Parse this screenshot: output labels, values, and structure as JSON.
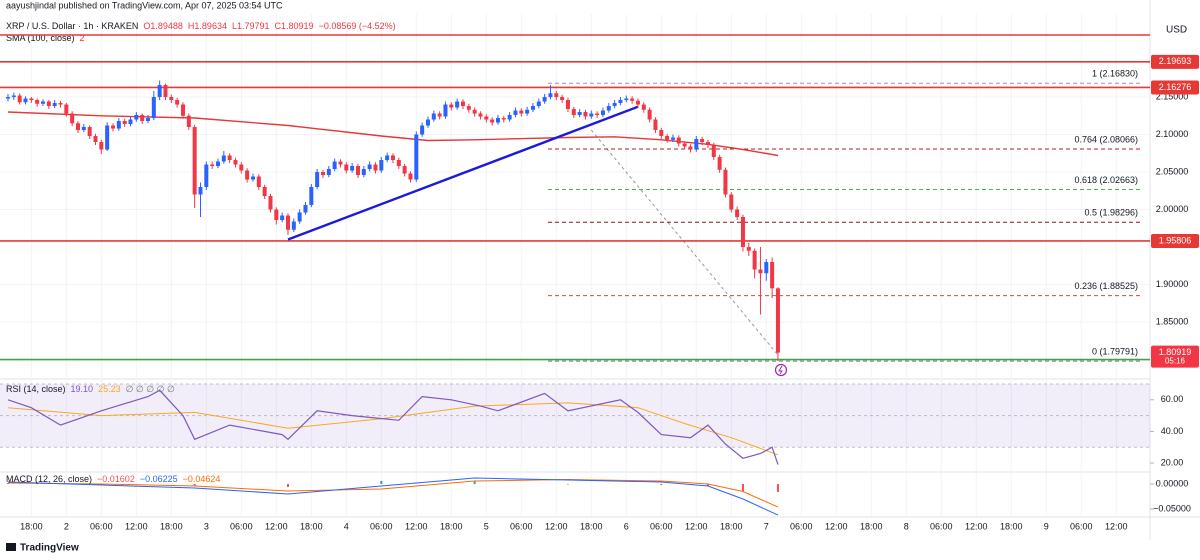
{
  "header": "aayushjindal published on TradingView.com, Apr 07, 2025 03:54 UTC",
  "footer": "TradingView",
  "chart_data": {
    "type": "candlestick",
    "title": "XRP / U.S. Dollar · 1h · KRAKEN",
    "ohlc_text": [
      "O1.89488",
      "H1.89634",
      "L1.79791",
      "C1.80919",
      "−0.08569 (−4.52%)"
    ],
    "currency": "USD",
    "x_labels": [
      "18:00",
      "2",
      "06:00",
      "12:00",
      "18:00",
      "3",
      "06:00",
      "12:00",
      "18:00",
      "4",
      "06:00",
      "12:00",
      "18:00",
      "5",
      "06:00",
      "12:00",
      "18:00",
      "6",
      "06:00",
      "12:00",
      "18:00",
      "7",
      "06:00",
      "12:00",
      "18:00",
      "8",
      "06:00",
      "12:00",
      "18:00",
      "9",
      "06:00",
      "12:00"
    ],
    "up_color": "#2962ff",
    "down_color": "#f23645",
    "ylim": [
      1.776,
      2.2527
    ],
    "yticks": [
      {
        "value": 2.15,
        "label": "2.15000"
      },
      {
        "value": 2.1,
        "label": "2.10000"
      },
      {
        "value": 2.05,
        "label": "2.05000"
      },
      {
        "value": 2.0,
        "label": "2.00000"
      },
      {
        "value": 1.9,
        "label": "1.90000"
      },
      {
        "value": 1.85,
        "label": "1.85000"
      }
    ],
    "ohlc": [
      [
        2.148,
        2.154,
        2.144,
        2.15
      ],
      [
        2.15,
        2.156,
        2.146,
        2.152
      ],
      [
        2.152,
        2.155,
        2.14,
        2.143
      ],
      [
        2.143,
        2.151,
        2.14,
        2.148
      ],
      [
        2.148,
        2.15,
        2.142,
        2.146
      ],
      [
        2.146,
        2.148,
        2.137,
        2.141
      ],
      [
        2.141,
        2.147,
        2.138,
        2.144
      ],
      [
        2.144,
        2.146,
        2.134,
        2.138
      ],
      [
        2.138,
        2.146,
        2.135,
        2.142
      ],
      [
        2.142,
        2.145,
        2.136,
        2.14
      ],
      [
        2.14,
        2.142,
        2.124,
        2.128
      ],
      [
        2.128,
        2.131,
        2.111,
        2.115
      ],
      [
        2.115,
        2.118,
        2.102,
        2.106
      ],
      [
        2.106,
        2.114,
        2.103,
        2.11
      ],
      [
        2.11,
        2.112,
        2.094,
        2.098
      ],
      [
        2.098,
        2.101,
        2.086,
        2.09
      ],
      [
        2.09,
        2.093,
        2.074,
        2.08
      ],
      [
        2.08,
        2.116,
        2.078,
        2.112
      ],
      [
        2.112,
        2.115,
        2.104,
        2.108
      ],
      [
        2.108,
        2.122,
        2.105,
        2.118
      ],
      [
        2.118,
        2.121,
        2.11,
        2.114
      ],
      [
        2.114,
        2.124,
        2.111,
        2.12
      ],
      [
        2.12,
        2.13,
        2.117,
        2.126
      ],
      [
        2.126,
        2.128,
        2.114,
        2.118
      ],
      [
        2.118,
        2.126,
        2.115,
        2.122
      ],
      [
        2.122,
        2.158,
        2.119,
        2.15
      ],
      [
        2.15,
        2.172,
        2.146,
        2.166
      ],
      [
        2.166,
        2.168,
        2.146,
        2.15
      ],
      [
        2.15,
        2.153,
        2.142,
        2.146
      ],
      [
        2.146,
        2.149,
        2.136,
        2.14
      ],
      [
        2.14,
        2.143,
        2.121,
        2.125
      ],
      [
        2.125,
        2.128,
        2.106,
        2.11
      ],
      [
        2.11,
        2.113,
        2.002,
        2.02
      ],
      [
        2.02,
        2.036,
        1.99,
        2.03
      ],
      [
        2.03,
        2.064,
        2.026,
        2.06
      ],
      [
        2.06,
        2.064,
        2.054,
        2.058
      ],
      [
        2.058,
        2.068,
        2.055,
        2.064
      ],
      [
        2.064,
        2.078,
        2.061,
        2.072
      ],
      [
        2.072,
        2.075,
        2.062,
        2.066
      ],
      [
        2.066,
        2.069,
        2.056,
        2.06
      ],
      [
        2.06,
        2.063,
        2.048,
        2.052
      ],
      [
        2.052,
        2.055,
        2.036,
        2.04
      ],
      [
        2.04,
        2.048,
        2.037,
        2.044
      ],
      [
        2.044,
        2.047,
        2.026,
        2.03
      ],
      [
        2.03,
        2.033,
        2.014,
        2.018
      ],
      [
        2.018,
        2.021,
        1.996,
        2.0
      ],
      [
        2.0,
        2.003,
        1.98,
        1.986
      ],
      [
        1.986,
        1.996,
        1.983,
        1.992
      ],
      [
        1.992,
        1.995,
        1.966,
        1.973
      ],
      [
        1.973,
        1.988,
        1.97,
        1.984
      ],
      [
        1.984,
        2.0,
        1.981,
        1.996
      ],
      [
        1.996,
        2.01,
        1.993,
        2.006
      ],
      [
        2.006,
        2.034,
        2.003,
        2.03
      ],
      [
        2.03,
        2.054,
        2.027,
        2.05
      ],
      [
        2.05,
        2.053,
        2.042,
        2.046
      ],
      [
        2.046,
        2.058,
        2.043,
        2.054
      ],
      [
        2.054,
        2.068,
        2.051,
        2.064
      ],
      [
        2.064,
        2.067,
        2.056,
        2.06
      ],
      [
        2.06,
        2.063,
        2.048,
        2.052
      ],
      [
        2.052,
        2.062,
        2.049,
        2.058
      ],
      [
        2.058,
        2.061,
        2.042,
        2.046
      ],
      [
        2.046,
        2.058,
        2.043,
        2.054
      ],
      [
        2.054,
        2.064,
        2.051,
        2.06
      ],
      [
        2.06,
        2.063,
        2.048,
        2.052
      ],
      [
        2.052,
        2.07,
        2.049,
        2.066
      ],
      [
        2.066,
        2.076,
        2.063,
        2.072
      ],
      [
        2.072,
        2.075,
        2.062,
        2.066
      ],
      [
        2.066,
        2.069,
        2.054,
        2.058
      ],
      [
        2.058,
        2.061,
        2.044,
        2.048
      ],
      [
        2.048,
        2.051,
        2.036,
        2.04
      ],
      [
        2.04,
        2.104,
        2.037,
        2.1
      ],
      [
        2.1,
        2.116,
        2.097,
        2.112
      ],
      [
        2.112,
        2.124,
        2.109,
        2.12
      ],
      [
        2.12,
        2.132,
        2.117,
        2.128
      ],
      [
        2.128,
        2.131,
        2.12,
        2.124
      ],
      [
        2.124,
        2.144,
        2.121,
        2.14
      ],
      [
        2.14,
        2.143,
        2.132,
        2.136
      ],
      [
        2.136,
        2.148,
        2.133,
        2.144
      ],
      [
        2.144,
        2.147,
        2.134,
        2.138
      ],
      [
        2.138,
        2.141,
        2.129,
        2.133
      ],
      [
        2.133,
        2.136,
        2.124,
        2.128
      ],
      [
        2.128,
        2.131,
        2.12,
        2.124
      ],
      [
        2.124,
        2.127,
        2.116,
        2.12
      ],
      [
        2.12,
        2.123,
        2.112,
        2.116
      ],
      [
        2.116,
        2.126,
        2.113,
        2.122
      ],
      [
        2.122,
        2.125,
        2.116,
        2.12
      ],
      [
        2.12,
        2.13,
        2.117,
        2.126
      ],
      [
        2.126,
        2.136,
        2.123,
        2.132
      ],
      [
        2.132,
        2.135,
        2.124,
        2.128
      ],
      [
        2.128,
        2.137,
        2.125,
        2.133
      ],
      [
        2.133,
        2.142,
        2.13,
        2.138
      ],
      [
        2.138,
        2.148,
        2.135,
        2.144
      ],
      [
        2.144,
        2.154,
        2.141,
        2.15
      ],
      [
        2.15,
        2.166,
        2.147,
        2.155
      ],
      [
        2.155,
        2.158,
        2.146,
        2.15
      ],
      [
        2.15,
        2.153,
        2.142,
        2.146
      ],
      [
        2.146,
        2.149,
        2.13,
        2.134
      ],
      [
        2.134,
        2.137,
        2.122,
        2.126
      ],
      [
        2.126,
        2.134,
        2.123,
        2.13
      ],
      [
        2.13,
        2.133,
        2.12,
        2.124
      ],
      [
        2.124,
        2.132,
        2.121,
        2.128
      ],
      [
        2.128,
        2.131,
        2.122,
        2.126
      ],
      [
        2.126,
        2.136,
        2.123,
        2.132
      ],
      [
        2.132,
        2.142,
        2.129,
        2.138
      ],
      [
        2.138,
        2.146,
        2.135,
        2.142
      ],
      [
        2.142,
        2.15,
        2.139,
        2.146
      ],
      [
        2.146,
        2.152,
        2.143,
        2.148
      ],
      [
        2.148,
        2.151,
        2.141,
        2.145
      ],
      [
        2.145,
        2.148,
        2.136,
        2.14
      ],
      [
        2.14,
        2.143,
        2.129,
        2.133
      ],
      [
        2.133,
        2.136,
        2.116,
        2.12
      ],
      [
        2.12,
        2.123,
        2.102,
        2.106
      ],
      [
        2.106,
        2.109,
        2.094,
        2.098
      ],
      [
        2.098,
        2.101,
        2.089,
        2.093
      ],
      [
        2.093,
        2.1,
        2.09,
        2.096
      ],
      [
        2.096,
        2.099,
        2.084,
        2.088
      ],
      [
        2.088,
        2.091,
        2.08,
        2.084
      ],
      [
        2.084,
        2.087,
        2.076,
        2.08
      ],
      [
        2.08,
        2.098,
        2.077,
        2.094
      ],
      [
        2.094,
        2.097,
        2.086,
        2.09
      ],
      [
        2.09,
        2.093,
        2.082,
        2.086
      ],
      [
        2.086,
        2.089,
        2.066,
        2.07
      ],
      [
        2.07,
        2.073,
        2.049,
        2.053
      ],
      [
        2.053,
        2.056,
        2.016,
        2.02
      ],
      [
        2.02,
        2.023,
        1.996,
        2.0
      ],
      [
        2.0,
        2.004,
        1.986,
        1.99
      ],
      [
        1.99,
        1.993,
        1.944,
        1.95
      ],
      [
        1.95,
        1.956,
        1.938,
        1.945
      ],
      [
        1.945,
        1.948,
        1.908,
        1.92
      ],
      [
        1.92,
        1.95,
        1.86,
        1.915
      ],
      [
        1.915,
        1.934,
        1.905,
        1.93
      ],
      [
        1.93,
        1.936,
        1.882,
        1.895
      ],
      [
        1.89488,
        1.89634,
        1.79791,
        1.80919
      ]
    ],
    "sma": {
      "name": "SMA (100, close)",
      "value_text": "2",
      "color": "#e53935",
      "x": [
        0,
        16,
        32,
        48,
        64,
        72,
        80,
        96,
        104,
        112,
        120,
        126,
        132
      ],
      "values": [
        2.13,
        2.125,
        2.122,
        2.112,
        2.098,
        2.092,
        2.093,
        2.096,
        2.097,
        2.093,
        2.087,
        2.08,
        2.072
      ]
    },
    "trendline": {
      "color": "#1a1adb",
      "x": [
        48,
        108
      ],
      "values": [
        1.96,
        2.137
      ]
    },
    "hlines": [
      {
        "value": 2.2327,
        "color": "#e53935",
        "tagged": false
      },
      {
        "value": 2.19693,
        "color": "#e53935",
        "tagged": true
      },
      {
        "value": 2.16276,
        "color": "#e53935",
        "tagged": true
      },
      {
        "value": 1.95806,
        "color": "#e53935",
        "tagged": true
      },
      {
        "value": 1.79993,
        "color": "#43a047",
        "tagged": true
      }
    ],
    "last_price": {
      "value": 1.80919,
      "countdown": "05:16",
      "color": "#f23645"
    },
    "fib": {
      "anchor": {
        "x": [
          100,
          132
        ],
        "values": [
          2.106,
          1.806
        ]
      },
      "levels": [
        {
          "value": 2.1683,
          "label": "1 (2.16830)",
          "color": "#9598a1"
        },
        {
          "value": 2.08066,
          "label": "0.764 (2.08066)",
          "color": "#b71c1c"
        },
        {
          "value": 2.02663,
          "label": "0.618 (2.02663)",
          "color": "#4caf50"
        },
        {
          "value": 1.98296,
          "label": "0.5 (1.98296)",
          "color": "#7b1f1f"
        },
        {
          "value": 1.88525,
          "label": "0.236 (1.88525)",
          "color": "#c0504d"
        },
        {
          "value": 1.79791,
          "label": "0 (1.79791)",
          "color": "#787b86"
        }
      ]
    },
    "rsi": {
      "name": "RSI (14, close)",
      "value_text": "19.10",
      "ma_text": "25.23",
      "extra_text": "∅ ∅ ∅ ∅ ∅",
      "color": "#7e57c2",
      "ma_color": "#f9a825",
      "ylim": [
        15.6,
        70.6
      ],
      "yticks": [
        {
          "value": 60,
          "label": "60.00"
        },
        {
          "value": 40,
          "label": "40.00"
        },
        {
          "value": 20,
          "label": "20.00"
        }
      ],
      "levels": [
        70,
        50,
        30
      ],
      "x": [
        0,
        4,
        9,
        16,
        24,
        26,
        30,
        32,
        38,
        47,
        48,
        53,
        59,
        67,
        71,
        76,
        81,
        84,
        92,
        96,
        105,
        108,
        112,
        117,
        120,
        123,
        126,
        129,
        131,
        132
      ],
      "values": [
        60,
        55,
        44,
        53,
        62,
        66,
        50,
        35,
        44,
        38,
        35,
        53,
        50,
        47,
        62,
        60,
        56,
        53,
        64,
        53,
        60,
        52,
        38,
        36,
        44,
        32,
        23,
        26,
        30,
        19.1
      ],
      "ma_x": [
        0,
        16,
        32,
        48,
        64,
        80,
        96,
        108,
        116,
        124,
        132
      ],
      "ma_values": [
        55,
        50,
        52,
        42,
        48,
        56,
        58,
        55,
        45,
        36,
        25.23
      ]
    },
    "macd": {
      "name": "MACD (12, 26, close)",
      "hist_text": "−0.01602",
      "macd_text": "−0.06225",
      "signal_text": "−0.04624",
      "macd_color": "#2962ff",
      "signal_color": "#ff6d00",
      "ylim": [
        -0.066,
        0.018
      ],
      "yticks": [
        {
          "value": 0,
          "label": "0.00000"
        },
        {
          "value": -0.05,
          "label": "−0.05000"
        }
      ],
      "x": [
        0,
        16,
        32,
        48,
        64,
        80,
        96,
        112,
        120,
        126,
        132
      ],
      "macd": [
        0.004,
        -0.002,
        -0.008,
        -0.02,
        -0.004,
        0.012,
        0.008,
        0.004,
        -0.004,
        -0.03,
        -0.06225
      ],
      "signal": [
        0.002,
        0,
        -0.004,
        -0.014,
        -0.01,
        0.006,
        0.009,
        0.006,
        0,
        -0.015,
        -0.04624
      ],
      "hist": [
        0.002,
        -0.002,
        -0.004,
        -0.006,
        0.006,
        0.006,
        -0.001,
        -0.002,
        -0.004,
        -0.015,
        -0.01602
      ]
    }
  }
}
